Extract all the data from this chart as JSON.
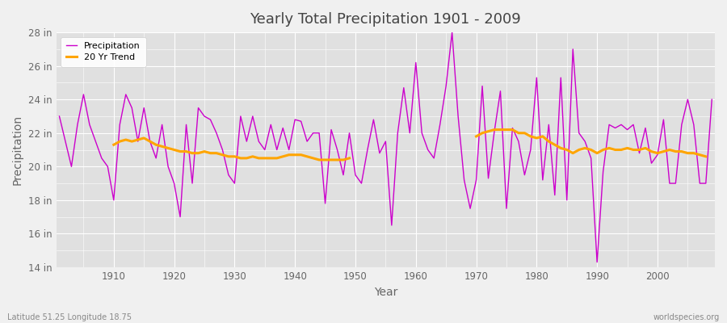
{
  "title": "Yearly Total Precipitation 1901 - 2009",
  "xlabel": "Year",
  "ylabel": "Precipitation",
  "footnote_left": "Latitude 51.25 Longitude 18.75",
  "footnote_right": "worldspecies.org",
  "ylim": [
    14,
    28
  ],
  "yticks": [
    14,
    16,
    18,
    20,
    22,
    24,
    26,
    28
  ],
  "ytick_labels": [
    "14 in",
    "16 in",
    "18 in",
    "20 in",
    "22 in",
    "24 in",
    "26 in",
    "28 in"
  ],
  "xticks": [
    1910,
    1920,
    1930,
    1940,
    1950,
    1960,
    1970,
    1980,
    1990,
    2000
  ],
  "precip_color": "#cc00cc",
  "trend_color": "#ffa500",
  "bg_color": "#f0f0f0",
  "plot_bg_color": "#e0e0e0",
  "grid_color": "#ffffff",
  "title_color": "#444444",
  "tick_color": "#666666",
  "years": [
    1901,
    1902,
    1903,
    1904,
    1905,
    1906,
    1907,
    1908,
    1909,
    1910,
    1911,
    1912,
    1913,
    1914,
    1915,
    1916,
    1917,
    1918,
    1919,
    1920,
    1921,
    1922,
    1923,
    1924,
    1925,
    1926,
    1927,
    1928,
    1929,
    1930,
    1931,
    1932,
    1933,
    1934,
    1935,
    1936,
    1937,
    1938,
    1939,
    1940,
    1941,
    1942,
    1943,
    1944,
    1945,
    1946,
    1947,
    1948,
    1949,
    1950,
    1951,
    1952,
    1953,
    1954,
    1955,
    1956,
    1957,
    1958,
    1959,
    1960,
    1961,
    1962,
    1963,
    1964,
    1965,
    1966,
    1967,
    1968,
    1969,
    1970,
    1971,
    1972,
    1973,
    1974,
    1975,
    1976,
    1977,
    1978,
    1979,
    1980,
    1981,
    1982,
    1983,
    1984,
    1985,
    1986,
    1987,
    1988,
    1989,
    1990,
    1991,
    1992,
    1993,
    1994,
    1995,
    1996,
    1997,
    1998,
    1999,
    2000,
    2001,
    2002,
    2003,
    2004,
    2005,
    2006,
    2007,
    2008,
    2009
  ],
  "precip": [
    23.0,
    21.5,
    20.0,
    22.5,
    24.3,
    22.5,
    21.5,
    20.5,
    20.0,
    18.0,
    22.5,
    24.3,
    23.5,
    21.5,
    23.5,
    21.5,
    20.5,
    22.5,
    20.0,
    19.0,
    17.0,
    22.5,
    19.0,
    23.5,
    23.0,
    22.8,
    22.0,
    21.0,
    19.5,
    19.0,
    23.0,
    21.5,
    23.0,
    21.5,
    21.0,
    22.5,
    21.0,
    22.3,
    21.0,
    22.8,
    22.7,
    21.5,
    22.0,
    22.0,
    17.8,
    22.2,
    21.0,
    19.5,
    22.0,
    19.5,
    19.0,
    21.0,
    22.8,
    20.8,
    21.5,
    16.5,
    22.0,
    24.7,
    22.0,
    26.2,
    22.0,
    21.0,
    20.5,
    22.5,
    24.8,
    28.0,
    23.0,
    19.2,
    17.5,
    19.2,
    24.8,
    19.3,
    22.1,
    24.5,
    17.5,
    22.3,
    21.5,
    19.5,
    21.0,
    25.3,
    19.2,
    22.5,
    18.3,
    25.3,
    18.0,
    27.0,
    22.0,
    21.5,
    20.5,
    14.3,
    19.7,
    22.5,
    22.3,
    22.5,
    22.2,
    22.5,
    20.8,
    22.3,
    20.2,
    20.7,
    22.8,
    19.0,
    19.0,
    22.5,
    24.0,
    22.5,
    19.0,
    19.0,
    24.0
  ],
  "trend": [
    null,
    null,
    null,
    null,
    null,
    null,
    null,
    null,
    null,
    21.3,
    21.5,
    21.6,
    21.5,
    21.6,
    21.7,
    21.5,
    21.3,
    21.2,
    21.1,
    21.0,
    20.9,
    20.9,
    20.8,
    20.8,
    20.9,
    20.8,
    20.8,
    20.7,
    20.6,
    20.6,
    20.5,
    20.5,
    20.6,
    20.5,
    20.5,
    20.5,
    20.5,
    20.6,
    20.7,
    20.7,
    20.7,
    20.6,
    20.5,
    20.4,
    20.4,
    20.4,
    20.4,
    20.4,
    20.5,
    null,
    null,
    null,
    null,
    null,
    null,
    null,
    null,
    null,
    null,
    null,
    null,
    null,
    null,
    null,
    null,
    null,
    null,
    null,
    null,
    21.8,
    22.0,
    22.1,
    22.2,
    22.2,
    22.2,
    22.2,
    22.0,
    22.0,
    21.8,
    21.7,
    21.8,
    21.5,
    21.3,
    21.1,
    21.0,
    20.8,
    21.0,
    21.1,
    21.0,
    20.8,
    21.0,
    21.1,
    21.0,
    21.0,
    21.1,
    21.0,
    21.0,
    21.1,
    20.9,
    20.8,
    20.9,
    21.0,
    20.9,
    20.9,
    20.8,
    20.8,
    20.7,
    20.6,
    null
  ]
}
